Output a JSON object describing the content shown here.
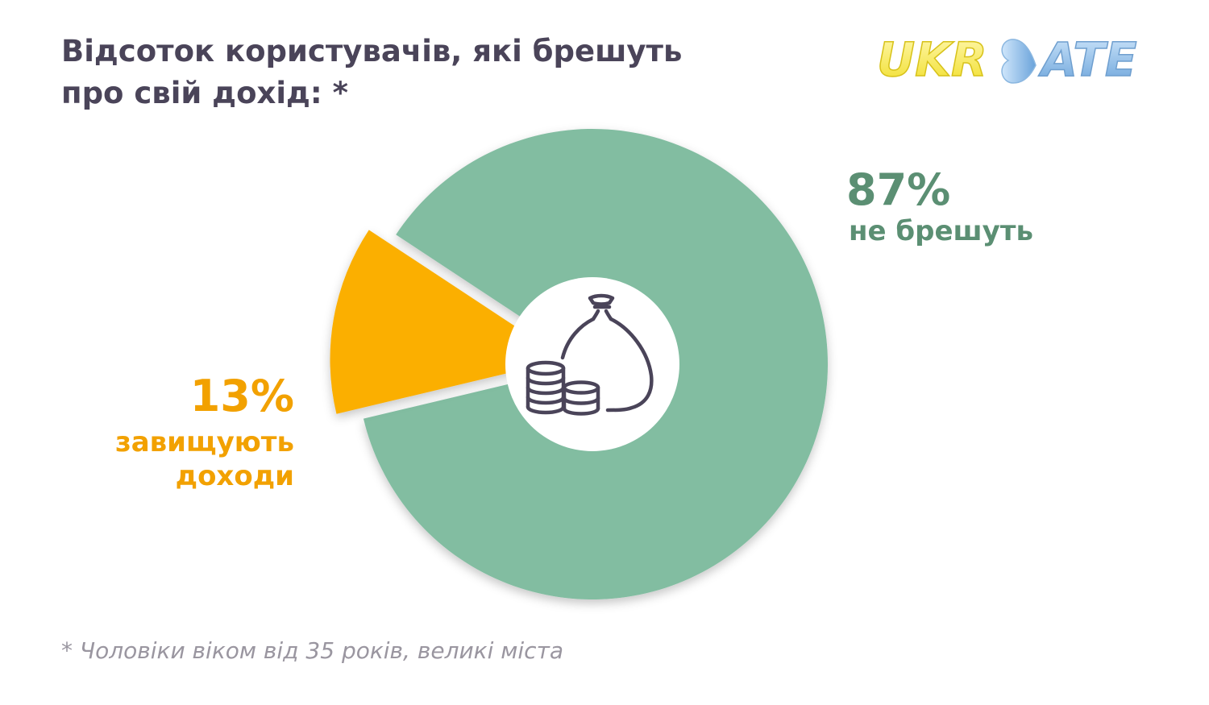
{
  "title": {
    "line1": "Відсоток користувачів, які брешуть",
    "line2": "про свій дохід: *"
  },
  "logo": {
    "text_left": "UKR",
    "text_right": "ATE",
    "icon": "heart-icon"
  },
  "center_icon": "money-bag-with-coins-icon",
  "chart_data": {
    "type": "pie",
    "title": "Відсоток користувачів, які брешуть про свій дохід: *",
    "slices": [
      {
        "label": "не брешуть",
        "value": 87,
        "value_label": "87%",
        "color": "#82bda1"
      },
      {
        "label": "завищують доходи",
        "value": 13,
        "value_label": "13%",
        "color": "#fbaf00",
        "exploded": true
      }
    ],
    "donut": true
  },
  "labels": {
    "green_pct": "87%",
    "green_text": "не брешуть",
    "orange_pct": "13%",
    "orange_text_line1": "завищують",
    "orange_text_line2": "доходи"
  },
  "colors": {
    "title": "#4a4459",
    "green_slice": "#82bda1",
    "green_label": "#5b8f73",
    "orange_slice": "#fbaf00",
    "orange_label": "#f2a100",
    "footnote": "#9a96a0"
  },
  "footnote": "* Чоловіки віком від 35 років, великі міста"
}
